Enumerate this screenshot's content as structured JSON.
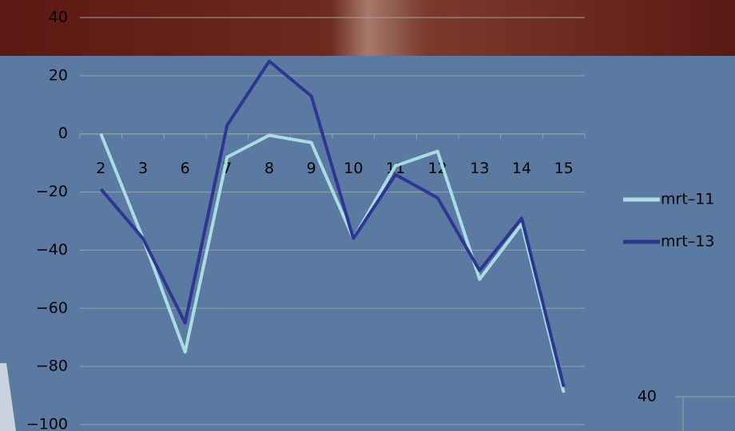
{
  "chart_data": [
    {
      "type": "line",
      "categories": [
        "2",
        "3",
        "6",
        "7",
        "8",
        "9",
        "10",
        "11",
        "12",
        "13",
        "14",
        "15"
      ],
      "series": [
        {
          "name": "mrt–11",
          "color": "#a9dde3",
          "values": [
            0,
            -36,
            -75,
            -8,
            -0.5,
            -3,
            -36,
            -11,
            -6,
            -50,
            -31,
            -89
          ]
        },
        {
          "name": "mrt–13",
          "color": "#2f3592",
          "values": [
            -19,
            -36,
            -65,
            3,
            25,
            13,
            -36,
            -14,
            -22,
            -47,
            -29,
            -87
          ]
        }
      ],
      "ylim": [
        -100,
        40
      ],
      "yticks": [
        {
          "value": -100,
          "label": "−100"
        },
        {
          "value": -80,
          "label": "−80"
        },
        {
          "value": -60,
          "label": "−60"
        },
        {
          "value": -40,
          "label": "−40"
        },
        {
          "value": -20,
          "label": "−20"
        },
        0,
        20,
        40
      ],
      "grid": true
    },
    {
      "type": "line",
      "yticks": [
        40
      ]
    }
  ]
}
